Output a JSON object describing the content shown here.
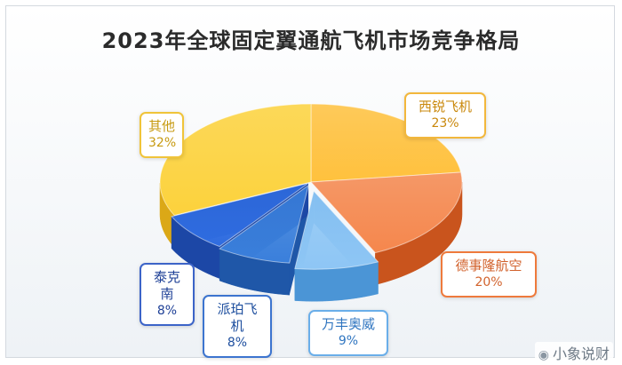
{
  "chart_data": {
    "type": "pie",
    "title": "2023年全球固定翼通航飞机市场竞争格局",
    "slices": [
      {
        "label": "西锐飞机",
        "value": 23,
        "pct_label": "23%",
        "color": "#ffc13d",
        "side": "#e69a10",
        "border": "#f2b73c",
        "text": "#c9880c"
      },
      {
        "label": "德事隆航空",
        "value": 20,
        "pct_label": "20%",
        "color": "#f5874d",
        "side": "#c9541d",
        "border": "#ee7a3c",
        "text": "#d2622c"
      },
      {
        "label": "万丰奥威",
        "value": 9,
        "pct_label": "9%",
        "color": "#8ec6f5",
        "side": "#4b95d6",
        "border": "#6aaee9",
        "text": "#2f75c0"
      },
      {
        "label": "派珀飞机",
        "value": 8,
        "pct_label": "8%",
        "color": "#3a7fdb",
        "side": "#1f57a8",
        "border": "#3c74cf",
        "text": "#1d4e9e"
      },
      {
        "label": "泰克南",
        "value": 8,
        "pct_label": "8%",
        "color": "#2f6ce0",
        "side": "#1c47a6",
        "border": "#3c64c8",
        "text": "#1d3f96"
      },
      {
        "label": "其他",
        "value": 32,
        "pct_label": "32%",
        "color": "#fcd23c",
        "side": "#dba817",
        "border": "#f0c43a",
        "text": "#c79a10"
      }
    ]
  },
  "watermark": {
    "text": "小象说财",
    "icon": "weibo-icon"
  }
}
